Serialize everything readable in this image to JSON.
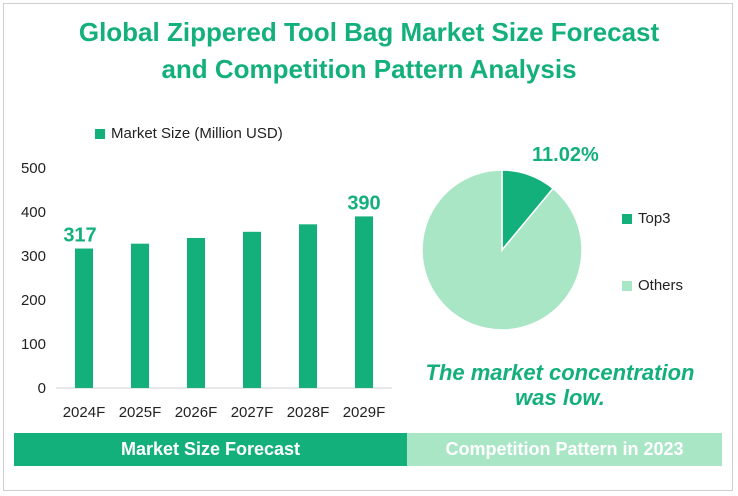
{
  "title": {
    "line1": "Global Zippered Tool Bag Market Size Forecast",
    "line2": "and Competition Pattern Analysis"
  },
  "colors": {
    "primary": "#13b07b",
    "light": "#a9e6c6"
  },
  "chart_data": [
    {
      "type": "bar",
      "series_name": "Market Size (Million USD)",
      "categories": [
        "2024F",
        "2025F",
        "2026F",
        "2027F",
        "2028F",
        "2029F"
      ],
      "values": [
        317,
        328,
        341,
        355,
        372,
        390
      ],
      "labeled_values": [
        "317",
        "",
        "",
        "",
        "",
        "390"
      ],
      "yticks": [
        "0",
        "100",
        "200",
        "300",
        "400",
        "500"
      ],
      "ylim": [
        0,
        500
      ],
      "legend_position": "top-left"
    },
    {
      "type": "pie",
      "labels": [
        "Top3",
        "Others"
      ],
      "values": [
        11.02,
        88.98
      ],
      "data_label": "11.02%",
      "legend_position": "right"
    }
  ],
  "conclusion": "The market concentration was low.",
  "footer": {
    "left": "Market Size Forecast",
    "right": "Competition Pattern in 2023"
  }
}
